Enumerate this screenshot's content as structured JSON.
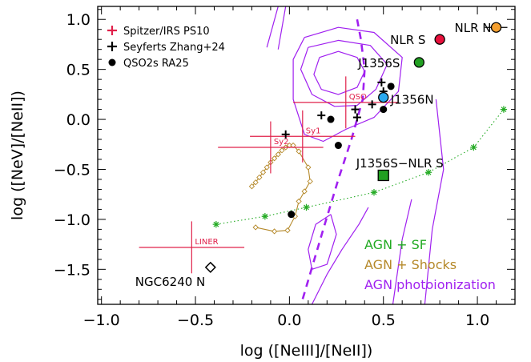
{
  "chart_data": {
    "type": "scatter",
    "xlabel": "log ([NeIII]/[NeII])",
    "ylabel": "log ([NeV]/[NeII])",
    "xlim": [
      -1.02,
      1.2
    ],
    "ylim": [
      -1.85,
      1.13
    ],
    "xticks": [
      -1.0,
      -0.5,
      0.0,
      0.5,
      1.0
    ],
    "xtick_labels": [
      "−1.0",
      "−0.5",
      "0.0",
      "0.5",
      "1.0"
    ],
    "yticks": [
      -1.5,
      -1.0,
      -0.5,
      0.0,
      0.5,
      1.0
    ],
    "ytick_labels": [
      "−1.5",
      "−1.0",
      "−0.5",
      "0.0",
      "0.5",
      "1.0"
    ],
    "legend": {
      "placement": "top-left",
      "entries": [
        {
          "label": "Spitzer/IRS PS10",
          "marker": "plus",
          "color": "#e0204a"
        },
        {
          "label": "Seyferts Zhang+24",
          "marker": "plus",
          "color": "#000000"
        },
        {
          "label": "QSO2s RA25",
          "marker": "circle",
          "color": "#000000"
        }
      ]
    },
    "model_legend": [
      {
        "label": "AGN + SF",
        "color": "#22aa22"
      },
      {
        "label": "AGN + Shocks",
        "color": "#b5892a"
      },
      {
        "label": "AGN photoionization",
        "color": "#a020f0"
      }
    ],
    "ps10_templates": [
      {
        "label": "QSO",
        "x": 0.3,
        "y": 0.17
      },
      {
        "label": "Sy1",
        "x": 0.07,
        "y": -0.17
      },
      {
        "label": "Sy2",
        "x": -0.1,
        "y": -0.28
      },
      {
        "label": "LINER",
        "x": -0.52,
        "y": -1.28
      }
    ],
    "seyferts_zhang24": [
      {
        "x": 0.49,
        "y": 0.37
      },
      {
        "x": 0.5,
        "y": 0.28
      },
      {
        "x": 0.44,
        "y": 0.15
      },
      {
        "x": 0.36,
        "y": 0.02
      },
      {
        "x": 0.35,
        "y": 0.1
      },
      {
        "x": 0.17,
        "y": 0.04
      },
      {
        "x": -0.02,
        "y": -0.15
      }
    ],
    "qso2s_ra25": [
      {
        "x": 0.54,
        "y": 0.33
      },
      {
        "x": 0.5,
        "y": 0.1
      },
      {
        "x": 0.22,
        "y": 0.0
      },
      {
        "x": 0.26,
        "y": -0.26
      },
      {
        "x": 0.01,
        "y": -0.95
      }
    ],
    "highlighted": [
      {
        "label": "NLR S",
        "x": 0.8,
        "y": 0.8,
        "color": "#e8103c",
        "marker": "circle"
      },
      {
        "label": "NLR N",
        "x": 1.1,
        "y": 0.92,
        "color": "#f5a030",
        "marker": "circle"
      },
      {
        "label": "J1356S",
        "x": 0.69,
        "y": 0.57,
        "color": "#22a022",
        "marker": "circle"
      },
      {
        "label": "J1356N",
        "x": 0.5,
        "y": 0.22,
        "color": "#2aaaf0",
        "marker": "circle"
      },
      {
        "label": "J1356S−NLR S",
        "x": 0.5,
        "y": -0.56,
        "color": "#22a022",
        "marker": "square"
      },
      {
        "label": "NGC6240 N",
        "x": -0.42,
        "y": -1.48,
        "color": "#ffffff",
        "marker": "diamond"
      }
    ],
    "agn_sf_model": [
      {
        "x": -0.39,
        "y": -1.05
      },
      {
        "x": -0.13,
        "y": -0.97
      },
      {
        "x": 0.09,
        "y": -0.88
      },
      {
        "x": 0.45,
        "y": -0.73
      },
      {
        "x": 0.74,
        "y": -0.53
      },
      {
        "x": 0.98,
        "y": -0.28
      },
      {
        "x": 1.14,
        "y": 0.1
      }
    ],
    "agn_shocks_model": [
      {
        "x": -0.2,
        "y": -0.67
      },
      {
        "x": -0.18,
        "y": -0.63
      },
      {
        "x": -0.16,
        "y": -0.58
      },
      {
        "x": -0.14,
        "y": -0.53
      },
      {
        "x": -0.12,
        "y": -0.48
      },
      {
        "x": -0.1,
        "y": -0.43
      },
      {
        "x": -0.08,
        "y": -0.39
      },
      {
        "x": -0.06,
        "y": -0.35
      },
      {
        "x": -0.04,
        "y": -0.31
      },
      {
        "x": -0.02,
        "y": -0.28
      },
      {
        "x": 0.0,
        "y": -0.26
      },
      {
        "x": 0.02,
        "y": -0.26
      },
      {
        "x": 0.05,
        "y": -0.32
      },
      {
        "x": 0.1,
        "y": -0.48
      },
      {
        "x": 0.11,
        "y": -0.62
      },
      {
        "x": 0.08,
        "y": -0.72
      },
      {
        "x": 0.05,
        "y": -0.82
      },
      {
        "x": 0.03,
        "y": -0.97
      },
      {
        "x": -0.01,
        "y": -1.11
      },
      {
        "x": -0.08,
        "y": -1.12
      },
      {
        "x": -0.18,
        "y": -1.08
      }
    ],
    "agn_photoionization_contours": [
      [
        {
          "x": 0.16,
          "y": 0.62
        },
        {
          "x": 0.26,
          "y": 0.68
        },
        {
          "x": 0.36,
          "y": 0.62
        },
        {
          "x": 0.4,
          "y": 0.48
        },
        {
          "x": 0.36,
          "y": 0.32
        },
        {
          "x": 0.26,
          "y": 0.25
        },
        {
          "x": 0.17,
          "y": 0.3
        },
        {
          "x": 0.13,
          "y": 0.45
        },
        {
          "x": 0.16,
          "y": 0.62
        }
      ],
      [
        {
          "x": 0.1,
          "y": 0.72
        },
        {
          "x": 0.26,
          "y": 0.79
        },
        {
          "x": 0.43,
          "y": 0.74
        },
        {
          "x": 0.52,
          "y": 0.55
        },
        {
          "x": 0.46,
          "y": 0.3
        },
        {
          "x": 0.36,
          "y": 0.14
        },
        {
          "x": 0.24,
          "y": 0.13
        },
        {
          "x": 0.12,
          "y": 0.25
        },
        {
          "x": 0.06,
          "y": 0.5
        },
        {
          "x": 0.1,
          "y": 0.72
        }
      ],
      [
        {
          "x": 0.08,
          "y": 0.82
        },
        {
          "x": 0.26,
          "y": 0.92
        },
        {
          "x": 0.45,
          "y": 0.87
        },
        {
          "x": 0.6,
          "y": 0.62
        },
        {
          "x": 0.58,
          "y": 0.28
        },
        {
          "x": 0.45,
          "y": 0.02
        },
        {
          "x": 0.3,
          "y": -0.1
        },
        {
          "x": 0.18,
          "y": -0.22
        },
        {
          "x": 0.08,
          "y": -0.15
        },
        {
          "x": 0.02,
          "y": 0.2
        },
        {
          "x": 0.02,
          "y": 0.6
        },
        {
          "x": 0.08,
          "y": 0.82
        }
      ],
      [
        {
          "x": -0.12,
          "y": 0.72
        },
        {
          "x": -0.06,
          "y": 1.13
        }
      ],
      [
        {
          "x": -0.06,
          "y": 0.7
        },
        {
          "x": -0.02,
          "y": 1.13
        }
      ],
      [
        {
          "x": 0.42,
          "y": -0.88
        },
        {
          "x": 0.37,
          "y": -1.05
        },
        {
          "x": 0.28,
          "y": -1.3
        },
        {
          "x": 0.2,
          "y": -1.55
        },
        {
          "x": 0.12,
          "y": -1.85
        }
      ],
      [
        {
          "x": 0.78,
          "y": 0.2
        },
        {
          "x": 0.82,
          "y": -0.5
        },
        {
          "x": 0.76,
          "y": -1.1
        },
        {
          "x": 0.72,
          "y": -1.85
        }
      ],
      [
        {
          "x": 0.65,
          "y": -0.8
        },
        {
          "x": 0.6,
          "y": -1.2
        },
        {
          "x": 0.55,
          "y": -1.85
        }
      ],
      [
        {
          "x": 0.22,
          "y": -0.95
        },
        {
          "x": 0.25,
          "y": -1.15
        },
        {
          "x": 0.2,
          "y": -1.45
        },
        {
          "x": 0.12,
          "y": -1.5
        },
        {
          "x": 0.1,
          "y": -1.3
        },
        {
          "x": 0.14,
          "y": -1.05
        },
        {
          "x": 0.22,
          "y": -0.95
        }
      ]
    ],
    "photoionization_boundary": [
      {
        "x": 0.36,
        "y": 1.0
      },
      {
        "x": 0.38,
        "y": 0.8
      },
      {
        "x": 0.4,
        "y": 0.5
      },
      {
        "x": 0.39,
        "y": 0.2
      },
      {
        "x": 0.33,
        "y": -0.2
      },
      {
        "x": 0.26,
        "y": -0.6
      },
      {
        "x": 0.18,
        "y": -1.1
      },
      {
        "x": 0.07,
        "y": -1.8
      }
    ]
  }
}
